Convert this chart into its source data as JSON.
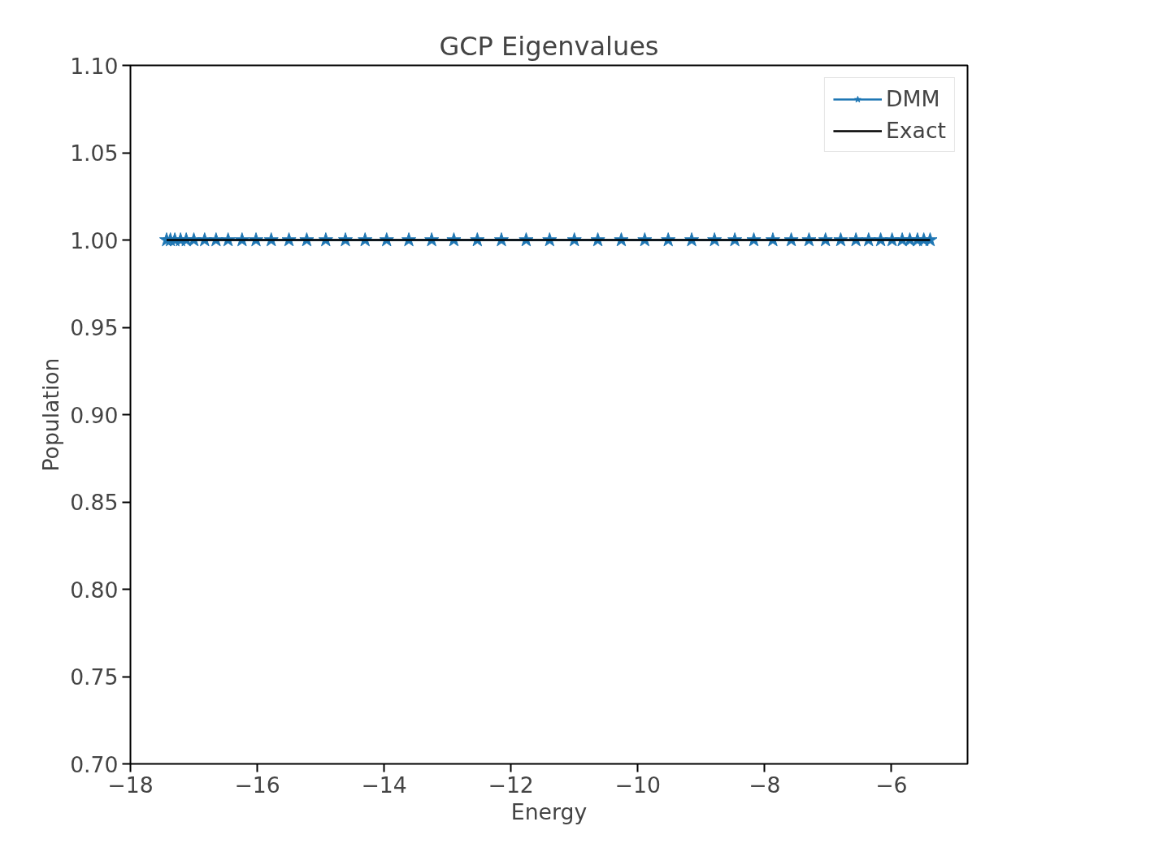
{
  "chart_data": {
    "type": "line",
    "title": "GCP Eigenvalues",
    "xlabel": "Energy",
    "ylabel": "Population",
    "xlim": [
      -18.0,
      -4.8
    ],
    "ylim": [
      0.7,
      1.1
    ],
    "xticks": [
      {
        "value": -18,
        "label": "−18"
      },
      {
        "value": -16,
        "label": "−16"
      },
      {
        "value": -14,
        "label": "−14"
      },
      {
        "value": -12,
        "label": "−12"
      },
      {
        "value": -10,
        "label": "−10"
      },
      {
        "value": -8,
        "label": "−8"
      },
      {
        "value": -6,
        "label": "−6"
      }
    ],
    "yticks": [
      {
        "value": 0.7,
        "label": "0.70"
      },
      {
        "value": 0.75,
        "label": "0.75"
      },
      {
        "value": 0.8,
        "label": "0.80"
      },
      {
        "value": 0.85,
        "label": "0.85"
      },
      {
        "value": 0.9,
        "label": "0.90"
      },
      {
        "value": 0.95,
        "label": "0.95"
      },
      {
        "value": 1.0,
        "label": "1.00"
      },
      {
        "value": 1.05,
        "label": "1.05"
      },
      {
        "value": 1.1,
        "label": "1.10"
      }
    ],
    "grid": false,
    "legend": "top right",
    "series": [
      {
        "name": "DMM",
        "color": "#1f77b4",
        "marker": "star",
        "x": [
          -17.43,
          -17.37,
          -17.3,
          -17.21,
          -17.12,
          -17.0,
          -16.83,
          -16.65,
          -16.46,
          -16.24,
          -16.02,
          -15.78,
          -15.5,
          -15.22,
          -14.92,
          -14.61,
          -14.3,
          -13.96,
          -13.61,
          -13.25,
          -12.9,
          -12.53,
          -12.15,
          -11.76,
          -11.39,
          -11.0,
          -10.63,
          -10.26,
          -9.89,
          -9.52,
          -9.15,
          -8.79,
          -8.47,
          -8.17,
          -7.87,
          -7.58,
          -7.3,
          -7.04,
          -6.8,
          -6.56,
          -6.36,
          -6.17,
          -5.99,
          -5.83,
          -5.71,
          -5.59,
          -5.49,
          -5.39
        ],
        "values": [
          1,
          1,
          1,
          1,
          1,
          1,
          1,
          1,
          1,
          1,
          1,
          1,
          1,
          1,
          1,
          1,
          1,
          1,
          1,
          1,
          1,
          1,
          1,
          1,
          1,
          1,
          1,
          1,
          1,
          1,
          1,
          1,
          1,
          1,
          1,
          1,
          1,
          1,
          1,
          1,
          1,
          1,
          1,
          1,
          1,
          1,
          1,
          1
        ]
      },
      {
        "name": "Exact",
        "color": "#000000",
        "marker": "none",
        "x": [
          -17.43,
          -5.39
        ],
        "values": [
          1,
          1
        ]
      }
    ]
  }
}
